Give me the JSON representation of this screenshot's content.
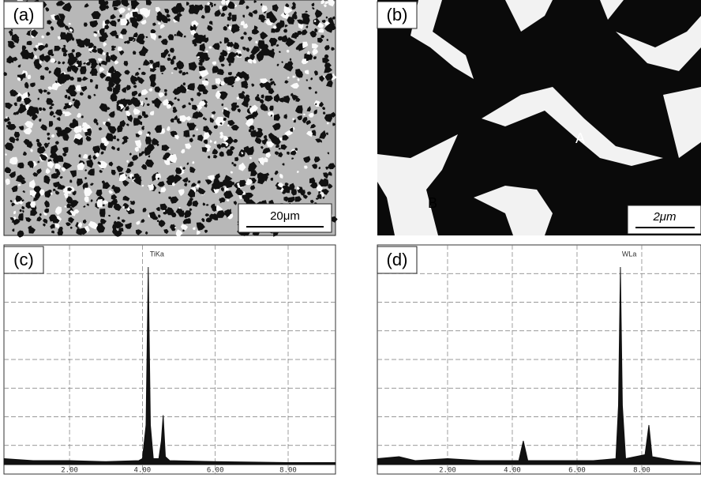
{
  "panels": [
    {
      "label": "(a)",
      "scale_bar": "20μm"
    },
    {
      "label": "(b)",
      "scale_bar": "2μm",
      "markers": [
        "A",
        "B"
      ]
    }
  ],
  "chart_data": [
    {
      "type": "line",
      "label": "(c)",
      "annotation": "TiKa",
      "x": [
        0.2,
        1.0,
        2.0,
        3.0,
        3.9,
        4.0,
        4.1,
        4.16,
        4.22,
        4.3,
        4.45,
        4.52,
        4.57,
        4.63,
        4.75,
        6.0,
        8.0,
        9.3
      ],
      "values": [
        3,
        2,
        2,
        1.5,
        2,
        3,
        20,
        100,
        20,
        3,
        3,
        12,
        25,
        4,
        2,
        1.5,
        1,
        1
      ],
      "xlim": [
        0.2,
        9.3
      ],
      "ylim": [
        0,
        100
      ],
      "xticks": [
        {
          "value": 2,
          "label": "2.00"
        },
        {
          "value": 4,
          "label": "4.00"
        },
        {
          "value": 6,
          "label": "6.00"
        },
        {
          "value": 8,
          "label": "8.00"
        }
      ],
      "grid": true,
      "color": "#111111"
    },
    {
      "type": "line",
      "label": "(d)",
      "annotation": "WLa",
      "x": [
        -0.17,
        0.5,
        1.0,
        2.0,
        3.0,
        4.2,
        4.34,
        4.48,
        5.5,
        6.5,
        7.2,
        7.28,
        7.34,
        7.4,
        7.5,
        8.1,
        8.22,
        8.32,
        9.0,
        9.83
      ],
      "values": [
        3,
        4,
        2,
        3,
        2,
        2,
        12,
        2,
        2,
        2,
        3,
        30,
        100,
        30,
        3,
        5,
        20,
        4,
        2,
        1
      ],
      "xlim": [
        -0.17,
        9.83
      ],
      "ylim": [
        0,
        100
      ],
      "xticks": [
        {
          "value": 2,
          "label": "2.00"
        },
        {
          "value": 4,
          "label": "4.00"
        },
        {
          "value": 6,
          "label": "6.00"
        },
        {
          "value": 8,
          "label": "8.00"
        }
      ],
      "grid": true,
      "color": "#111111"
    }
  ]
}
